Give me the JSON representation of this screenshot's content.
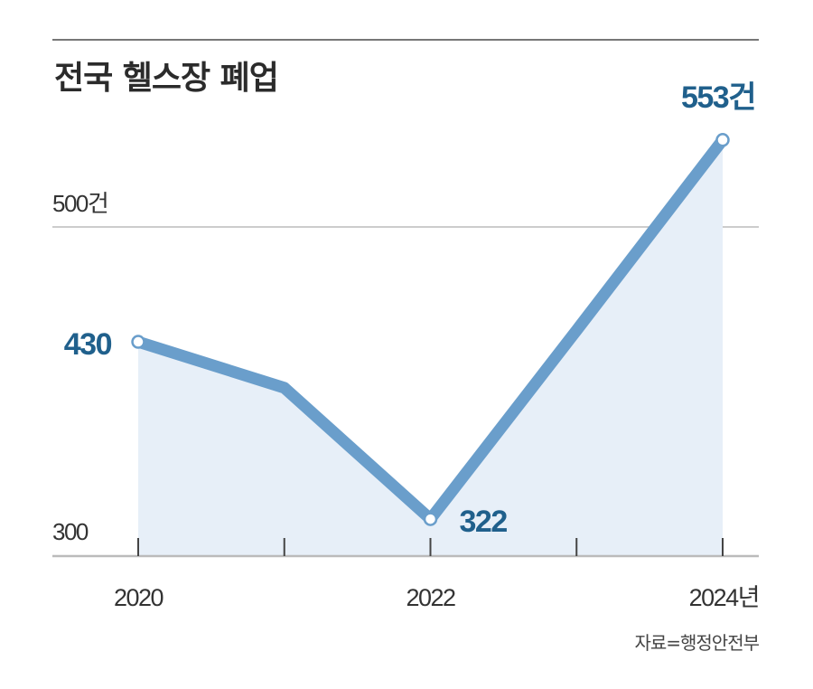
{
  "chart_data": {
    "type": "area",
    "title": "전국 헬스장 폐업",
    "x": [
      2020,
      2021,
      2022,
      2023,
      2024
    ],
    "x_tick_labels": [
      "2020",
      "2022",
      "2024년"
    ],
    "x_tick_values": [
      2020,
      2022,
      2024
    ],
    "values": [
      430,
      402,
      322,
      437,
      553
    ],
    "ylim": [
      300,
      580
    ],
    "y_tick_labels": [
      "300",
      "500건"
    ],
    "y_tick_values": [
      300,
      500
    ],
    "grid": "horizontal line at 500",
    "data_labels": [
      {
        "x": 2020,
        "text": "430"
      },
      {
        "x": 2022,
        "text": "322"
      },
      {
        "x": 2024,
        "text": "553건"
      }
    ],
    "markers_at": [
      2020,
      2022,
      2024
    ],
    "source": "자료=행정안전부",
    "colors": {
      "line": "#6a9ecb",
      "fill": "#e7eff8",
      "label": "#20608c",
      "text": "#333333"
    }
  }
}
